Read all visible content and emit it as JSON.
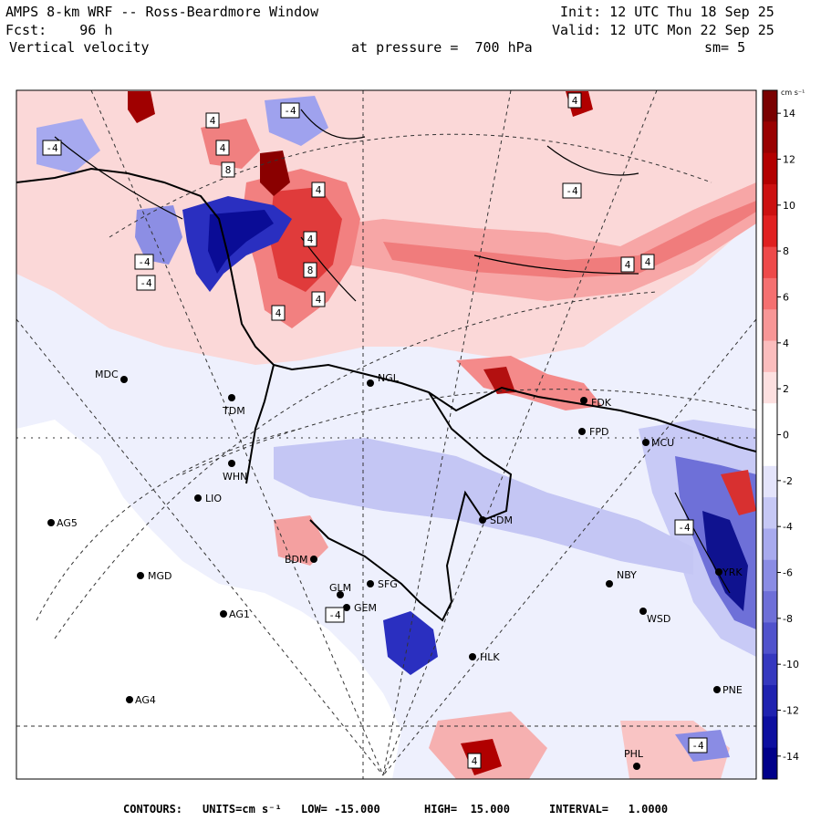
{
  "header": {
    "title": "AMPS 8-km WRF -- Ross-Beardmore Window",
    "fcst_label": "Fcst:",
    "fcst_value": "96 h",
    "field": "Vertical velocity",
    "init": "Init: 12 UTC Thu 18 Sep 25",
    "valid": "Valid: 12 UTC Mon 22 Sep 25",
    "pressure": "at pressure =  700 hPa",
    "smooth": "sm= 5"
  },
  "colorbar": {
    "units": "cm s⁻¹",
    "ticks": [
      "14",
      "12",
      "10",
      "8",
      "6",
      "4",
      "2",
      "0",
      "-2",
      "-4",
      "-6",
      "-8",
      "-10",
      "-12",
      "-14"
    ],
    "colors": [
      "#7a0000",
      "#990000",
      "#b30000",
      "#cc1010",
      "#e02020",
      "#ee4a4a",
      "#f57070",
      "#f89696",
      "#fbbdbd",
      "#fde0e0",
      "#ffffff",
      "#ffffff",
      "#e4e4fb",
      "#c6c8f5",
      "#a8aaee",
      "#8a8ce4",
      "#6e6fd8",
      "#5052cc",
      "#3538bf",
      "#1f22b0",
      "#0d0fa0",
      "#00008a"
    ]
  },
  "stations": [
    {
      "id": "MDC",
      "label": "MDC"
    },
    {
      "id": "TDM",
      "label": "TDM"
    },
    {
      "id": "NGL",
      "label": "NGL"
    },
    {
      "id": "FDK",
      "label": "FDK"
    },
    {
      "id": "FPD",
      "label": "FPD"
    },
    {
      "id": "MCU",
      "label": "MCU"
    },
    {
      "id": "WHN",
      "label": "WHN"
    },
    {
      "id": "LIO",
      "label": "LIO"
    },
    {
      "id": "AG5",
      "label": "AG5"
    },
    {
      "id": "SDM",
      "label": "SDM"
    },
    {
      "id": "BDM",
      "label": "BDM"
    },
    {
      "id": "MGD",
      "label": "MGD"
    },
    {
      "id": "SFG",
      "label": "SFG"
    },
    {
      "id": "GLM",
      "label": "GLM"
    },
    {
      "id": "GEM",
      "label": "GEM"
    },
    {
      "id": "AG1",
      "label": "AG1"
    },
    {
      "id": "NBY",
      "label": "NBY"
    },
    {
      "id": "WSD",
      "label": "WSD"
    },
    {
      "id": "HLK",
      "label": "HLK"
    },
    {
      "id": "AG4",
      "label": "AG4"
    },
    {
      "id": "PNE",
      "label": "PNE"
    },
    {
      "id": "PHL",
      "label": "PHL"
    },
    {
      "id": "YRK",
      "label": "YRK"
    }
  ],
  "contour_labels": [
    "4",
    "4",
    "8",
    "8",
    "4",
    "4",
    "4",
    "-4",
    "-4",
    "-4",
    "4",
    "4",
    "-4",
    "-4",
    "-4",
    "-4",
    "4",
    "4",
    "4",
    "-4"
  ],
  "footer": {
    "contours": "CONTOURS:",
    "units": "UNITS=cm s⁻¹",
    "low": "LOW= -15.000",
    "high": "HIGH=  15.000",
    "interval": "INTERVAL=   1.0000"
  }
}
